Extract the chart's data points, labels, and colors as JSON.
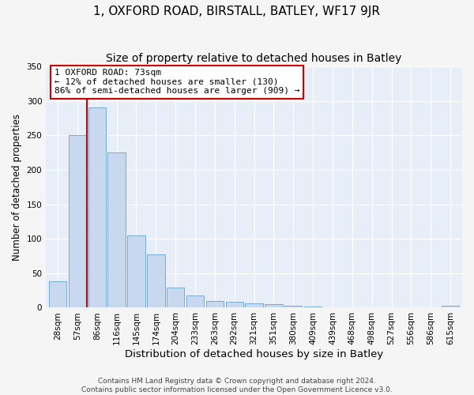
{
  "title_line1": "1, OXFORD ROAD, BIRSTALL, BATLEY, WF17 9JR",
  "title_line2": "Size of property relative to detached houses in Batley",
  "xlabel": "Distribution of detached houses by size in Batley",
  "ylabel": "Number of detached properties",
  "categories": [
    "28sqm",
    "57sqm",
    "86sqm",
    "116sqm",
    "145sqm",
    "174sqm",
    "204sqm",
    "233sqm",
    "263sqm",
    "292sqm",
    "321sqm",
    "351sqm",
    "380sqm",
    "409sqm",
    "439sqm",
    "468sqm",
    "498sqm",
    "527sqm",
    "556sqm",
    "586sqm",
    "615sqm"
  ],
  "values": [
    38,
    250,
    290,
    225,
    105,
    77,
    29,
    18,
    10,
    9,
    6,
    5,
    3,
    2,
    1,
    1,
    1,
    0,
    1,
    0,
    3
  ],
  "bar_color": "#c8d8ee",
  "bar_edge_color": "#7aaad0",
  "vline_x": 1.5,
  "vline_color": "#cc0000",
  "annotation_text": "1 OXFORD ROAD: 73sqm\n← 12% of detached houses are smaller (130)\n86% of semi-detached houses are larger (909) →",
  "annotation_box_color": "#ffffff",
  "annotation_box_edge_color": "#cc0000",
  "ylim": [
    0,
    350
  ],
  "yticks": [
    0,
    50,
    100,
    150,
    200,
    250,
    300,
    350
  ],
  "plot_bg_color": "#e8eef8",
  "fig_bg_color": "#f5f5f5",
  "footer_text": "Contains HM Land Registry data © Crown copyright and database right 2024.\nContains public sector information licensed under the Open Government Licence v3.0.",
  "title1_fontsize": 11,
  "title2_fontsize": 10,
  "xlabel_fontsize": 9.5,
  "ylabel_fontsize": 8.5,
  "tick_fontsize": 7.5,
  "footer_fontsize": 6.5
}
